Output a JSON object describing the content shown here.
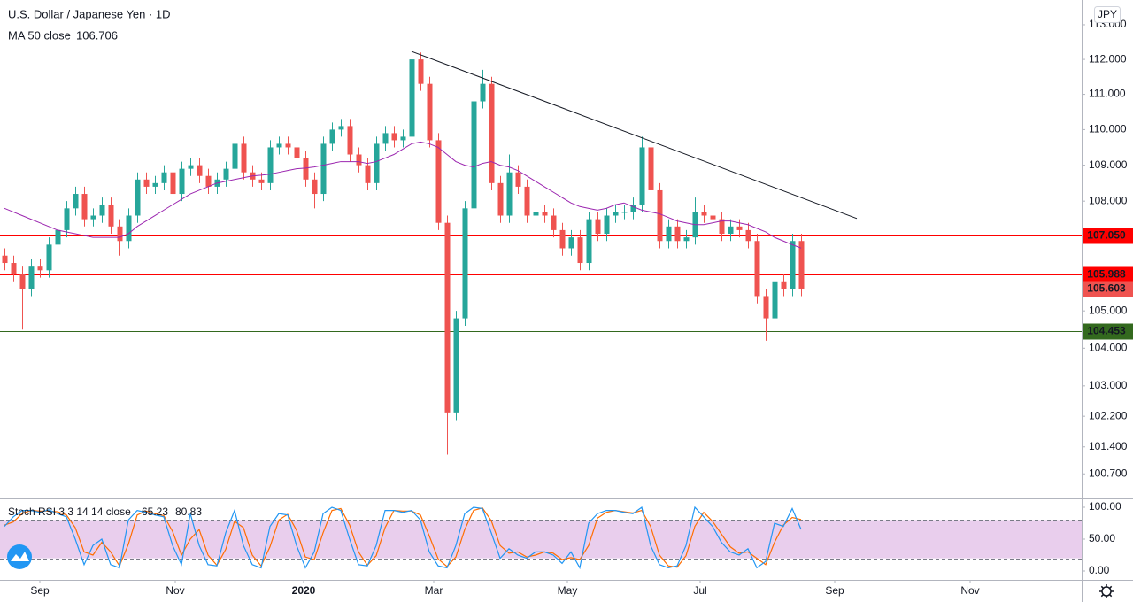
{
  "chart_data": [
    {
      "type": "candlestick",
      "title": "U.S. Dollar / Japanese Yen · 1D",
      "currency": "JPY",
      "log": true,
      "up_color": "#26a69a",
      "down_color": "#ef5350",
      "xlim": [
        -0.5,
        121.7
      ],
      "xticks": [
        {
          "value": 4.0,
          "label": "Sep"
        },
        {
          "value": 19.3,
          "label": "Nov"
        },
        {
          "value": 33.8,
          "label": "2020"
        },
        {
          "value": 48.5,
          "label": "Mar"
        },
        {
          "value": 63.6,
          "label": "May"
        },
        {
          "value": 78.6,
          "label": "Jul"
        },
        {
          "value": 93.8,
          "label": "Sep"
        },
        {
          "value": 109.1,
          "label": "Nov"
        }
      ],
      "ylim": [
        100.09,
        113.72
      ],
      "yticks": [
        {
          "value": 113,
          "label": "113.000"
        },
        {
          "value": 112,
          "label": "112.000"
        },
        {
          "value": 111,
          "label": "111.000"
        },
        {
          "value": 110,
          "label": "110.000"
        },
        {
          "value": 109,
          "label": "109.000"
        },
        {
          "value": 108,
          "label": "108.000"
        },
        {
          "value": 105,
          "label": "105.000"
        },
        {
          "value": 104,
          "label": "104.000"
        },
        {
          "value": 103,
          "label": "103.000"
        },
        {
          "value": 102.2,
          "label": "102.200"
        },
        {
          "value": 101.4,
          "label": "101.400"
        },
        {
          "value": 100.7,
          "label": "100.700"
        }
      ],
      "open": [
        106.5,
        106.3,
        106.0,
        105.6,
        106.2,
        106.1,
        106.8,
        107.2,
        107.8,
        108.2,
        107.5,
        107.6,
        107.9,
        107.3,
        106.9,
        107.6,
        108.6,
        108.4,
        108.5,
        108.8,
        108.2,
        108.9,
        109.0,
        108.7,
        108.4,
        108.6,
        108.9,
        109.6,
        108.8,
        108.6,
        108.5,
        109.5,
        109.6,
        109.5,
        109.2,
        108.6,
        108.2,
        109.6,
        110.0,
        110.1,
        109.3,
        109.0,
        108.5,
        109.6,
        109.9,
        109.7,
        109.8,
        112.0,
        111.3,
        109.7,
        107.4,
        102.3,
        104.8,
        107.8,
        110.8,
        111.3,
        108.5,
        107.6,
        108.8,
        108.4,
        107.6,
        107.7,
        107.6,
        107.2,
        106.7,
        107.0,
        106.3,
        107.5,
        107.1,
        107.6,
        107.7,
        107.7,
        107.9,
        109.5,
        108.3,
        106.9,
        107.3,
        106.9,
        107.0,
        107.7,
        107.6,
        107.5,
        107.1,
        107.3,
        107.2,
        106.9,
        105.4,
        104.8,
        105.8,
        105.6,
        106.9
      ],
      "high": [
        106.7,
        106.5,
        106.2,
        106.4,
        106.4,
        107.0,
        107.4,
        108.0,
        108.4,
        108.4,
        107.8,
        108.1,
        108.1,
        107.5,
        107.8,
        108.8,
        108.8,
        108.7,
        109.0,
        109.0,
        109.1,
        109.2,
        109.2,
        108.9,
        108.8,
        109.1,
        109.8,
        109.8,
        109.0,
        108.8,
        109.7,
        109.8,
        109.8,
        109.7,
        109.4,
        108.8,
        109.8,
        110.2,
        110.3,
        110.3,
        109.5,
        109.2,
        109.8,
        110.1,
        110.1,
        110.0,
        112.2,
        112.2,
        111.5,
        109.9,
        107.6,
        105.0,
        108.0,
        111.7,
        111.7,
        111.5,
        108.7,
        109.3,
        109.0,
        108.6,
        107.9,
        107.9,
        107.8,
        107.4,
        107.2,
        107.2,
        107.7,
        107.7,
        107.8,
        107.9,
        107.9,
        108.1,
        109.8,
        109.7,
        108.5,
        107.5,
        107.5,
        107.2,
        108.1,
        107.9,
        107.8,
        107.7,
        107.5,
        107.5,
        107.4,
        107.1,
        105.6,
        106.0,
        106.0,
        107.1,
        107.1
      ],
      "low": [
        106.1,
        105.8,
        104.5,
        105.4,
        105.9,
        105.9,
        106.6,
        107.0,
        107.6,
        107.3,
        107.3,
        107.4,
        107.1,
        106.5,
        106.7,
        107.4,
        108.2,
        108.2,
        108.3,
        108.0,
        108.0,
        108.7,
        108.5,
        108.2,
        108.2,
        108.4,
        108.7,
        108.6,
        108.4,
        108.3,
        108.3,
        109.3,
        109.3,
        109.0,
        108.4,
        107.8,
        108.0,
        109.4,
        109.8,
        109.1,
        108.8,
        108.3,
        108.3,
        109.4,
        109.5,
        109.5,
        109.6,
        111.1,
        109.5,
        107.2,
        101.2,
        102.1,
        104.6,
        107.6,
        110.6,
        108.3,
        107.4,
        107.4,
        108.2,
        107.4,
        107.4,
        107.4,
        107.0,
        106.5,
        106.5,
        106.1,
        106.1,
        106.9,
        106.9,
        107.4,
        107.5,
        107.5,
        107.7,
        108.1,
        106.7,
        106.7,
        106.7,
        106.7,
        106.8,
        107.4,
        107.3,
        106.9,
        106.9,
        107.0,
        106.7,
        105.2,
        104.2,
        104.6,
        105.4,
        105.4,
        105.4
      ],
      "close": [
        106.3,
        106.0,
        105.6,
        106.2,
        106.1,
        106.8,
        107.2,
        107.8,
        108.2,
        107.5,
        107.6,
        107.9,
        107.3,
        106.9,
        107.6,
        108.6,
        108.4,
        108.5,
        108.8,
        108.2,
        108.9,
        109.0,
        108.7,
        108.4,
        108.6,
        108.9,
        109.6,
        108.8,
        108.6,
        108.5,
        109.5,
        109.6,
        109.5,
        109.2,
        108.6,
        108.2,
        109.6,
        110.0,
        110.1,
        109.3,
        109.0,
        108.5,
        109.6,
        109.9,
        109.7,
        109.8,
        112.0,
        111.3,
        109.7,
        107.4,
        102.3,
        104.8,
        107.8,
        110.8,
        111.3,
        108.5,
        107.6,
        108.8,
        108.4,
        107.6,
        107.7,
        107.6,
        107.2,
        106.7,
        107.0,
        106.3,
        107.5,
        107.1,
        107.6,
        107.7,
        107.7,
        107.9,
        109.5,
        108.3,
        106.9,
        107.3,
        106.9,
        107.0,
        107.7,
        107.6,
        107.5,
        107.1,
        107.3,
        107.2,
        106.9,
        105.4,
        104.8,
        105.8,
        105.6,
        106.9,
        105.603
      ],
      "last_color": "#ef5350",
      "ma": {
        "name": "MA 50 close",
        "color": "#9c27b0",
        "values": [
          107.8,
          107.7,
          107.6,
          107.5,
          107.4,
          107.3,
          107.2,
          107.15,
          107.1,
          107.05,
          107.0,
          107.0,
          107.0,
          107.0,
          107.1,
          107.3,
          107.45,
          107.6,
          107.75,
          107.9,
          108.05,
          108.2,
          108.3,
          108.4,
          108.5,
          108.55,
          108.6,
          108.65,
          108.7,
          108.72,
          108.75,
          108.8,
          108.85,
          108.9,
          108.92,
          108.95,
          109.0,
          109.05,
          109.1,
          109.1,
          109.1,
          109.05,
          109.1,
          109.2,
          109.3,
          109.45,
          109.6,
          109.65,
          109.6,
          109.5,
          109.3,
          109.1,
          109.0,
          108.95,
          109.05,
          109.1,
          109.0,
          108.95,
          108.85,
          108.7,
          108.55,
          108.4,
          108.25,
          108.1,
          107.95,
          107.85,
          107.8,
          107.75,
          107.8,
          107.9,
          107.95,
          107.85,
          107.75,
          107.7,
          107.65,
          107.55,
          107.45,
          107.4,
          107.35,
          107.35,
          107.4,
          107.45,
          107.45,
          107.4,
          107.35,
          107.25,
          107.15,
          107.0,
          106.9,
          106.8,
          106.706
        ]
      },
      "levels": [
        {
          "value": 107.05,
          "label": "107.050",
          "color": "#ff0000"
        },
        {
          "value": 105.988,
          "label": "105.988",
          "color": "#ff0000"
        },
        {
          "value": 104.453,
          "label": "104.453",
          "color": "#33691e"
        }
      ],
      "trendline": {
        "x": [
          46,
          96.3
        ],
        "y": [
          112.23,
          107.52
        ],
        "color": "#131722"
      }
    },
    {
      "type": "line",
      "title": "Stoch RSI 3 3 14 14 close",
      "ylim": [
        -13.9,
        113.9
      ],
      "yticks": [
        {
          "value": 0,
          "label": "0.00"
        },
        {
          "value": 50,
          "label": "50.00"
        },
        {
          "value": 100,
          "label": "100.00"
        }
      ],
      "band": [
        20,
        80
      ],
      "band_color": "#e1bee7",
      "series": [
        {
          "name": "K",
          "color": "#2196f3",
          "values": [
            70,
            85,
            95,
            95,
            92,
            96,
            90,
            85,
            50,
            10,
            40,
            50,
            10,
            5,
            80,
            95,
            92,
            88,
            85,
            40,
            10,
            90,
            40,
            10,
            8,
            60,
            95,
            40,
            10,
            5,
            70,
            90,
            88,
            40,
            5,
            30,
            90,
            100,
            95,
            50,
            10,
            8,
            40,
            95,
            95,
            92,
            95,
            80,
            30,
            8,
            5,
            40,
            90,
            100,
            98,
            60,
            20,
            35,
            25,
            20,
            30,
            30,
            25,
            12,
            30,
            5,
            75,
            90,
            95,
            95,
            92,
            90,
            100,
            40,
            10,
            5,
            8,
            40,
            100,
            85,
            70,
            45,
            30,
            25,
            35,
            5,
            15,
            75,
            70,
            98,
            65.23
          ]
        },
        {
          "name": "D",
          "color": "#ff6d00",
          "values": [
            72,
            77,
            90,
            95,
            94,
            94,
            93,
            88,
            68,
            30,
            25,
            45,
            30,
            8,
            42,
            88,
            94,
            90,
            87,
            62,
            25,
            50,
            65,
            25,
            9,
            34,
            78,
            68,
            25,
            8,
            38,
            80,
            89,
            64,
            22,
            18,
            60,
            95,
            98,
            72,
            30,
            9,
            24,
            68,
            95,
            94,
            94,
            88,
            55,
            19,
            7,
            22,
            65,
            95,
            99,
            79,
            40,
            28,
            30,
            22,
            25,
            30,
            28,
            18,
            21,
            18,
            40,
            83,
            92,
            95,
            93,
            91,
            95,
            70,
            25,
            8,
            6,
            24,
            70,
            92,
            78,
            58,
            38,
            28,
            30,
            20,
            10,
            45,
            72,
            84,
            80.83
          ]
        }
      ]
    }
  ]
}
